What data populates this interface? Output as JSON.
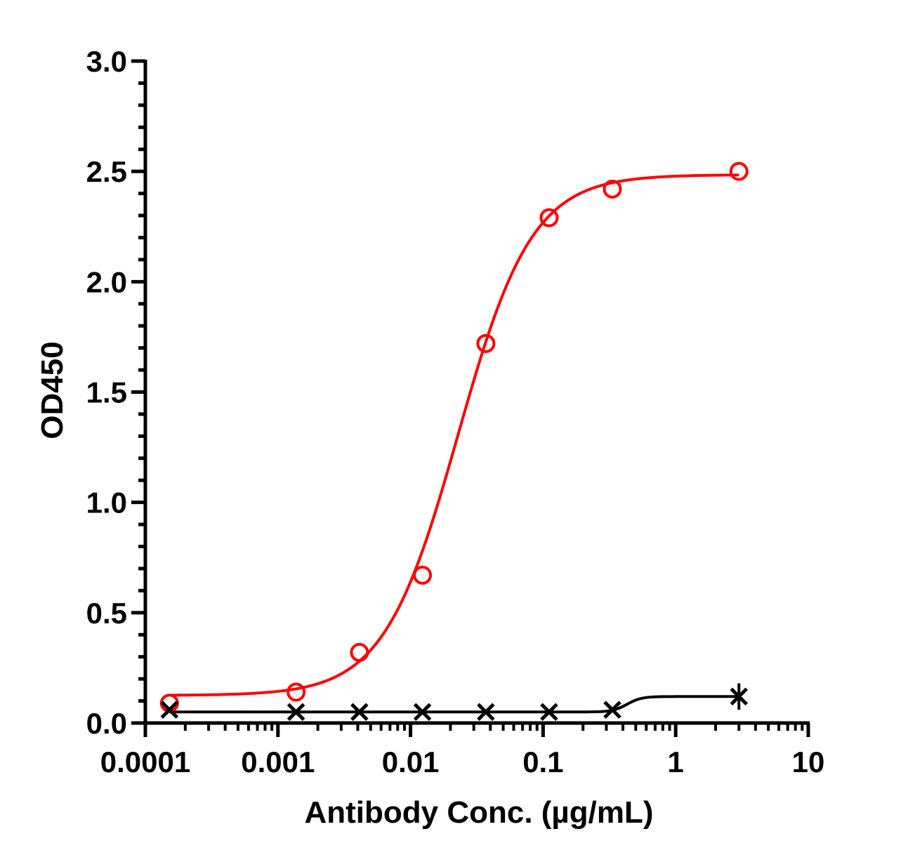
{
  "chart_data": {
    "type": "scatter",
    "title": "",
    "xlabel": "Antibody Conc. (µg/mL)",
    "ylabel": "OD450",
    "x_scale": "log",
    "xlim": [
      0.0001,
      10
    ],
    "ylim": [
      0,
      3.0
    ],
    "x_ticks": [
      0.0001,
      0.001,
      0.01,
      0.1,
      1,
      10
    ],
    "x_tick_labels": [
      "0.0001",
      "0.001",
      "0.01",
      "0.1",
      "1",
      "10"
    ],
    "y_ticks": [
      0,
      0.5,
      1.0,
      1.5,
      2.0,
      2.5,
      3.0
    ],
    "y_tick_labels": [
      "0.0",
      "0.5",
      "1.0",
      "1.5",
      "2.0",
      "2.5",
      "3.0"
    ],
    "grid": false,
    "legend": "none",
    "series": [
      {
        "color": "#ff0000",
        "marker": "open-circle",
        "fit": "sigmoidal",
        "x": [
          0.000152,
          0.00137,
          0.00412,
          0.0123,
          0.037,
          0.111,
          0.333,
          3.0
        ],
        "y": [
          0.09,
          0.14,
          0.32,
          0.67,
          1.72,
          2.29,
          2.42,
          2.5
        ]
      },
      {
        "color": "#000000",
        "marker": "x",
        "fit": "sigmoidal",
        "x": [
          0.000152,
          0.00137,
          0.00412,
          0.0123,
          0.037,
          0.111,
          0.333,
          3.0
        ],
        "y": [
          0.06,
          0.05,
          0.05,
          0.05,
          0.05,
          0.05,
          0.06,
          0.12
        ],
        "error_y": [
          0,
          0,
          0,
          0,
          0,
          0,
          0,
          0.06
        ]
      }
    ]
  }
}
